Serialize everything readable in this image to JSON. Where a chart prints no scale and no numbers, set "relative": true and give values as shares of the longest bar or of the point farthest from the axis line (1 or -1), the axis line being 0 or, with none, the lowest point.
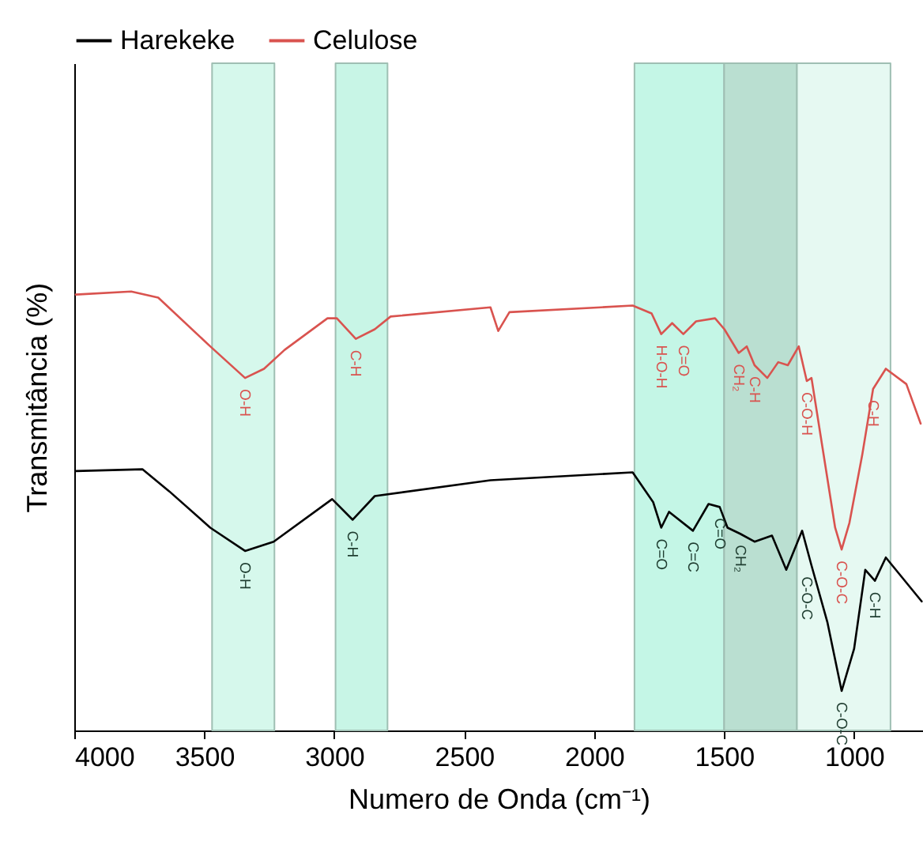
{
  "chart_data": {
    "type": "line",
    "relative": true,
    "xlabel": "Numero de Onda (cm⁻¹)",
    "ylabel": "Transmitância (%)",
    "xlim": [
      4000,
      735
    ],
    "xticks": [
      4000,
      3500,
      3000,
      2500,
      2000,
      1500,
      1000
    ],
    "tick_labels": "x",
    "grid": false,
    "legend": "top",
    "line_style": "solid",
    "series": [
      {
        "name": "Harekeke",
        "color": "#000000",
        "x": [
          3994,
          3738,
          3635,
          3477,
          3343,
          3233,
          3008,
          2929,
          2844,
          2399,
          1852,
          1773,
          1742,
          1712,
          1620,
          1560,
          1517,
          1487,
          1438,
          1383,
          1316,
          1261,
          1200,
          1164,
          1103,
          1048,
          1000,
          957,
          920,
          878,
          740
        ],
        "values": [
          0.591,
          0.595,
          0.545,
          0.462,
          0.409,
          0.43,
          0.527,
          0.48,
          0.534,
          0.57,
          0.588,
          0.52,
          0.462,
          0.498,
          0.455,
          0.516,
          0.509,
          0.462,
          0.448,
          0.43,
          0.444,
          0.366,
          0.455,
          0.376,
          0.247,
          0.09,
          0.186,
          0.366,
          0.341,
          0.394,
          0.294
        ]
      },
      {
        "name": "Celulose",
        "color": "#d9534f",
        "x": [
          3994,
          3781,
          3677,
          3477,
          3343,
          3270,
          3191,
          3026,
          2990,
          2917,
          2844,
          2783,
          2399,
          2369,
          2326,
          1973,
          1852,
          1779,
          1742,
          1700,
          1657,
          1608,
          1535,
          1499,
          1444,
          1413,
          1383,
          1334,
          1292,
          1255,
          1213,
          1182,
          1164,
          1121,
          1073,
          1048,
          1018,
          969,
          927,
          878,
          799,
          744
        ],
        "values": [
          0.993,
          1.0,
          0.986,
          0.875,
          0.803,
          0.824,
          0.867,
          0.939,
          0.939,
          0.892,
          0.914,
          0.943,
          0.964,
          0.91,
          0.953,
          0.964,
          0.968,
          0.95,
          0.903,
          0.928,
          0.903,
          0.932,
          0.939,
          0.914,
          0.86,
          0.875,
          0.832,
          0.803,
          0.839,
          0.832,
          0.875,
          0.796,
          0.803,
          0.642,
          0.462,
          0.412,
          0.473,
          0.627,
          0.778,
          0.824,
          0.789,
          0.699
        ]
      }
    ],
    "bands": [
      {
        "axis": "x",
        "from": 3470,
        "to": 3230,
        "color": "#d6f8ec"
      },
      {
        "axis": "x",
        "from": 2995,
        "to": 2795,
        "color": "#c8f5e6"
      },
      {
        "axis": "x",
        "from": 1845,
        "to": 1500,
        "color": "#c4f6e6"
      },
      {
        "axis": "x",
        "from": 1500,
        "to": 1220,
        "color": "#badfd1"
      },
      {
        "axis": "x",
        "from": 1220,
        "to": 860,
        "color": "#e6f9f2"
      }
    ],
    "annotations": [
      {
        "text": "O-H",
        "x": 3343,
        "y": 0.803
      },
      {
        "text": "C-H",
        "x": 2917,
        "y": 0.892
      },
      {
        "text": "H-O-H",
        "x": 1742,
        "y": 0.903
      },
      {
        "text": "C=O",
        "x": 1657,
        "y": 0.903
      },
      {
        "text": "CH₂",
        "x": 1444,
        "y": 0.86
      },
      {
        "text": "C-H",
        "x": 1383,
        "y": 0.832
      },
      {
        "text": "C-O-H",
        "x": 1182,
        "y": 0.796
      },
      {
        "text": "C-O-C",
        "x": 1048,
        "y": 0.412
      },
      {
        "text": "C-H",
        "x": 927,
        "y": 0.778
      },
      {
        "text": "O-H",
        "x": 3343,
        "y": 0.409
      },
      {
        "text": "C-H",
        "x": 2929,
        "y": 0.48
      },
      {
        "text": "C=O",
        "x": 1742,
        "y": 0.462
      },
      {
        "text": "C=C",
        "x": 1620,
        "y": 0.455
      },
      {
        "text": "C=O",
        "x": 1517,
        "y": 0.509
      },
      {
        "text": "CH₂",
        "x": 1438,
        "y": 0.448
      },
      {
        "text": "C-O-C",
        "x": 1182,
        "y": 0.376
      },
      {
        "text": "C-O-C",
        "x": 1048,
        "y": 0.09
      },
      {
        "text": "C-H",
        "x": 920,
        "y": 0.341
      }
    ]
  }
}
